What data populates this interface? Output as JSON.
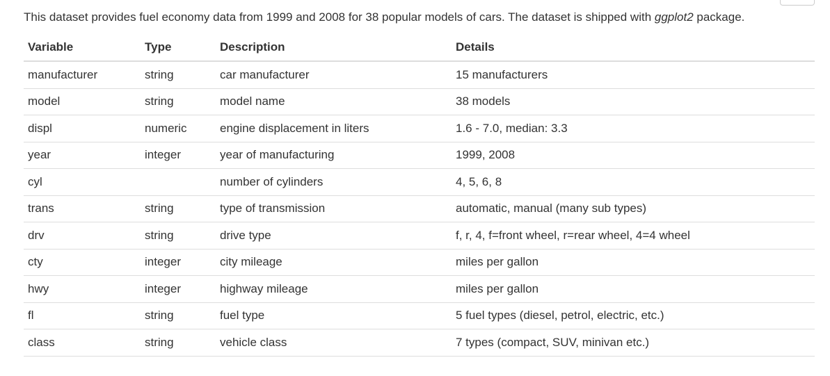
{
  "intro": {
    "before": "This dataset provides fuel economy data from 1999 and 2008 for 38 popular models of cars. The dataset is shipped with ",
    "package": "ggplot2",
    "after": " package."
  },
  "table": {
    "headers": [
      "Variable",
      "Type",
      "Description",
      "Details"
    ],
    "rows": [
      [
        "manufacturer",
        "string",
        "car manufacturer",
        "15 manufacturers"
      ],
      [
        "model",
        "string",
        "model name",
        "38 models"
      ],
      [
        "displ",
        "numeric",
        "engine displacement in liters",
        "1.6 - 7.0, median: 3.3"
      ],
      [
        "year",
        "integer",
        "year of manufacturing",
        "1999, 2008"
      ],
      [
        "cyl",
        "",
        "number of cylinders",
        "4, 5, 6, 8"
      ],
      [
        "trans",
        "string",
        "type of transmission",
        "automatic, manual (many sub types)"
      ],
      [
        "drv",
        "string",
        "drive type",
        "f, r, 4, f=front wheel, r=rear wheel, 4=4 wheel"
      ],
      [
        "cty",
        "integer",
        "city mileage",
        "miles per gallon"
      ],
      [
        "hwy",
        "integer",
        "highway mileage",
        "miles per gallon"
      ],
      [
        "fl",
        "string",
        "fuel type",
        "5 fuel types (diesel, petrol, electric, etc.)"
      ],
      [
        "class",
        "string",
        "vehicle class",
        "7 types (compact, SUV, minivan etc.)"
      ]
    ]
  }
}
